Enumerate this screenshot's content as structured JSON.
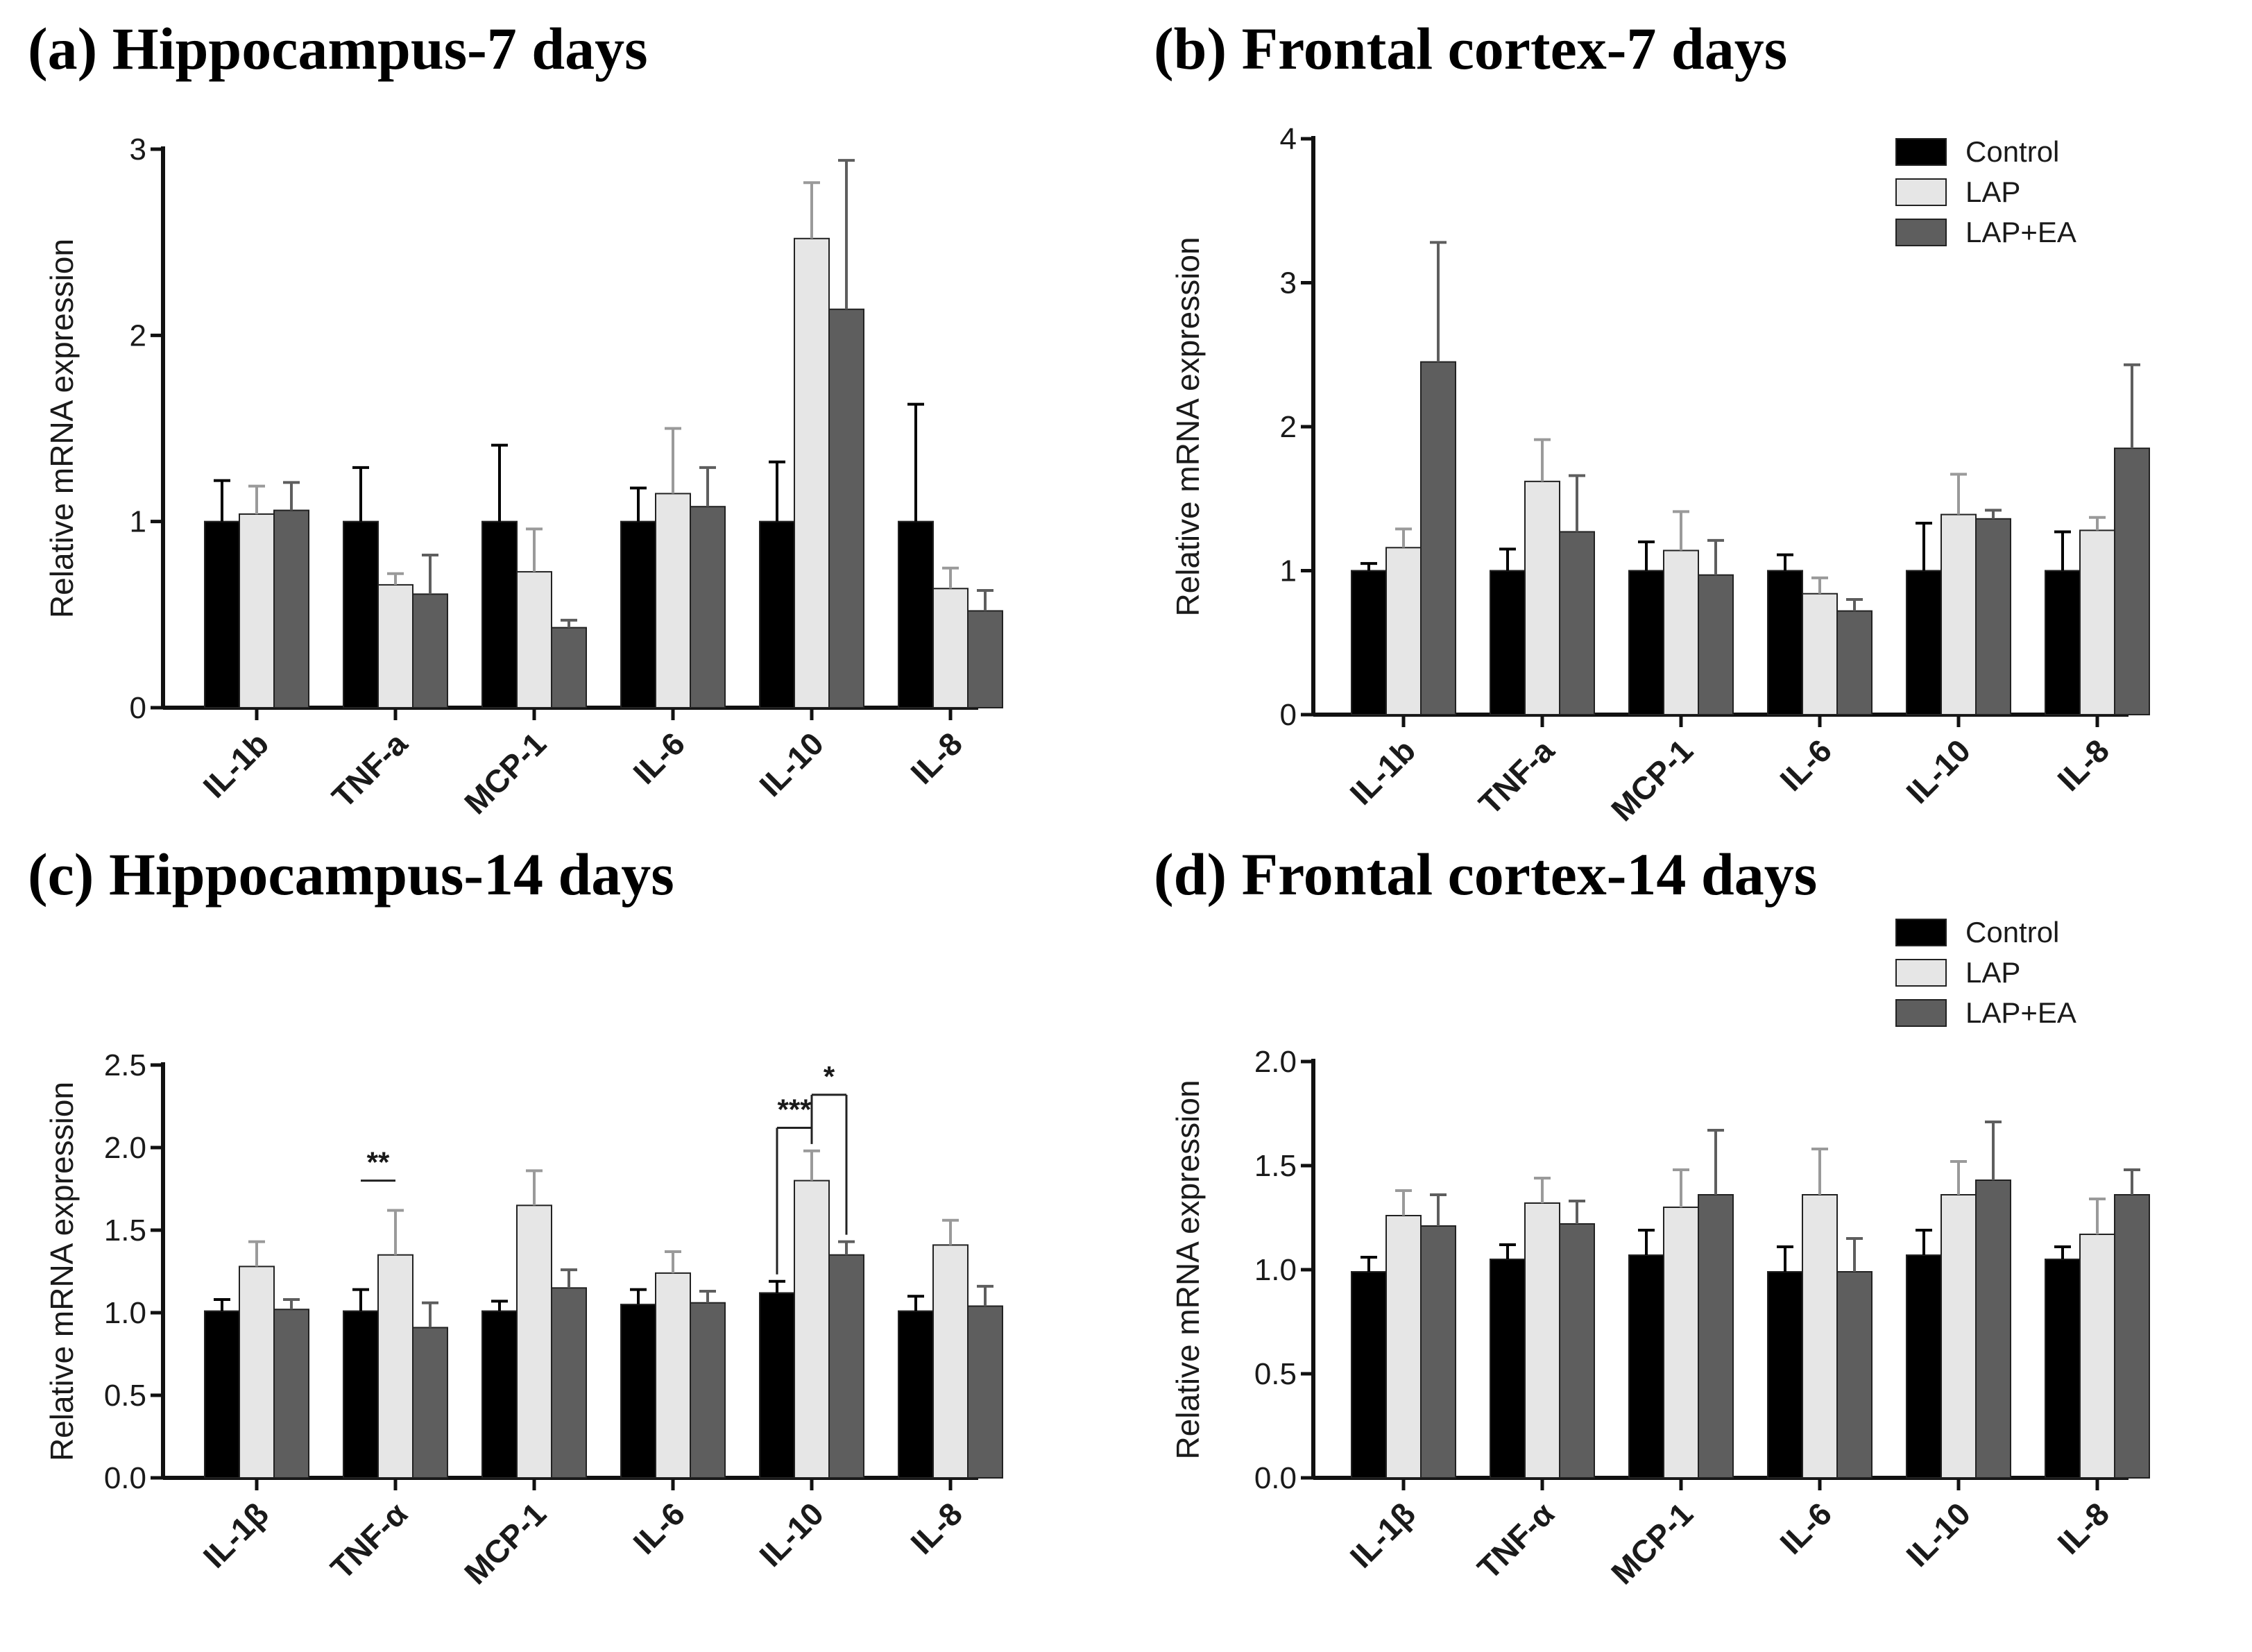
{
  "colors": {
    "Control": "#000000",
    "LAP": "#e6e6e6",
    "LAP+EA": "#5e5e5e"
  },
  "chart_data": [
    {
      "type": "bar",
      "title": "(a) Hippocampus-7 days",
      "ylabel": "Relative mRNA expression",
      "xlabel": "",
      "ylim": [
        0,
        3
      ],
      "yticks": [
        "0",
        "1",
        "2",
        "3"
      ],
      "categories": [
        "IL-1b",
        "TNF-a",
        "MCP-1",
        "IL-6",
        "IL-10",
        "IL-8"
      ],
      "series": [
        {
          "name": "Control",
          "values": [
            1.0,
            1.0,
            1.0,
            1.0,
            1.0,
            1.0
          ],
          "errors": [
            0.22,
            0.29,
            0.41,
            0.18,
            0.32,
            0.63
          ]
        },
        {
          "name": "LAP",
          "values": [
            1.04,
            0.66,
            0.73,
            1.15,
            2.52,
            0.64
          ],
          "errors": [
            0.15,
            0.06,
            0.23,
            0.35,
            0.3,
            0.11
          ]
        },
        {
          "name": "LAP+EA",
          "values": [
            1.06,
            0.61,
            0.43,
            1.08,
            2.14,
            0.52
          ],
          "errors": [
            0.15,
            0.21,
            0.04,
            0.21,
            0.8,
            0.11
          ]
        }
      ],
      "legend": false,
      "annotations": []
    },
    {
      "type": "bar",
      "title": "(b) Frontal cortex-7 days",
      "ylabel": "Relative mRNA expression",
      "xlabel": "",
      "ylim": [
        0,
        4
      ],
      "yticks": [
        "0",
        "1",
        "2",
        "3",
        "4"
      ],
      "categories": [
        "IL-1b",
        "TNF-a",
        "MCP-1",
        "IL-6",
        "IL-10",
        "IL-8"
      ],
      "series": [
        {
          "name": "Control",
          "values": [
            1.0,
            1.0,
            1.0,
            1.0,
            1.0,
            1.0
          ],
          "errors": [
            0.05,
            0.15,
            0.2,
            0.11,
            0.33,
            0.27
          ]
        },
        {
          "name": "LAP",
          "values": [
            1.16,
            1.62,
            1.14,
            0.84,
            1.39,
            1.28
          ],
          "errors": [
            0.13,
            0.29,
            0.27,
            0.11,
            0.28,
            0.09
          ]
        },
        {
          "name": "LAP+EA",
          "values": [
            2.45,
            1.27,
            0.97,
            0.72,
            1.36,
            1.85
          ],
          "errors": [
            0.83,
            0.39,
            0.24,
            0.08,
            0.06,
            0.58
          ]
        }
      ],
      "legend": true,
      "annotations": []
    },
    {
      "type": "bar",
      "title": "(c) Hippocampus-14 days",
      "ylabel": "Relative mRNA expression",
      "xlabel": "",
      "ylim": [
        0,
        2.5
      ],
      "yticks": [
        "0.0",
        "0.5",
        "1.0",
        "1.5",
        "2.0",
        "2.5"
      ],
      "categories": [
        "IL-1β",
        "TNF-α",
        "MCP-1",
        "IL-6",
        "IL-10",
        "IL-8"
      ],
      "series": [
        {
          "name": "Control",
          "values": [
            1.01,
            1.01,
            1.01,
            1.05,
            1.12,
            1.01
          ],
          "errors": [
            0.07,
            0.13,
            0.06,
            0.09,
            0.07,
            0.09
          ]
        },
        {
          "name": "LAP",
          "values": [
            1.28,
            1.35,
            1.65,
            1.24,
            1.8,
            1.41
          ],
          "errors": [
            0.15,
            0.27,
            0.21,
            0.13,
            0.18,
            0.15
          ]
        },
        {
          "name": "LAP+EA",
          "values": [
            1.02,
            0.91,
            1.15,
            1.06,
            1.35,
            1.04
          ],
          "errors": [
            0.06,
            0.15,
            0.11,
            0.07,
            0.08,
            0.12
          ]
        }
      ],
      "legend": false,
      "annotations": [
        {
          "text": "**",
          "category": "TNF-α",
          "from": "Control",
          "to": "LAP",
          "y": 1.8,
          "style": "flat"
        },
        {
          "text": "***",
          "category": "IL-10",
          "from": "Control",
          "to": "LAP",
          "y": 2.12,
          "style": "drop"
        },
        {
          "text": "*",
          "category": "IL-10",
          "from": "LAP",
          "to": "LAP+EA",
          "y": 2.32,
          "style": "drop"
        }
      ]
    },
    {
      "type": "bar",
      "title": "(d) Frontal cortex-14 days",
      "ylabel": "Relative mRNA expression",
      "xlabel": "",
      "ylim": [
        0,
        2.0
      ],
      "yticks": [
        "0.0",
        "0.5",
        "1.0",
        "1.5",
        "2.0"
      ],
      "categories": [
        "IL-1β",
        "TNF-α",
        "MCP-1",
        "IL-6",
        "IL-10",
        "IL-8"
      ],
      "series": [
        {
          "name": "Control",
          "values": [
            0.99,
            1.05,
            1.07,
            0.99,
            1.07,
            1.05
          ],
          "errors": [
            0.07,
            0.07,
            0.12,
            0.12,
            0.12,
            0.06
          ]
        },
        {
          "name": "LAP",
          "values": [
            1.26,
            1.32,
            1.3,
            1.36,
            1.36,
            1.17
          ],
          "errors": [
            0.12,
            0.12,
            0.18,
            0.22,
            0.16,
            0.17
          ]
        },
        {
          "name": "LAP+EA",
          "values": [
            1.21,
            1.22,
            1.36,
            0.99,
            1.43,
            1.36
          ],
          "errors": [
            0.15,
            0.11,
            0.31,
            0.16,
            0.28,
            0.12
          ]
        }
      ],
      "legend": true,
      "annotations": []
    }
  ]
}
